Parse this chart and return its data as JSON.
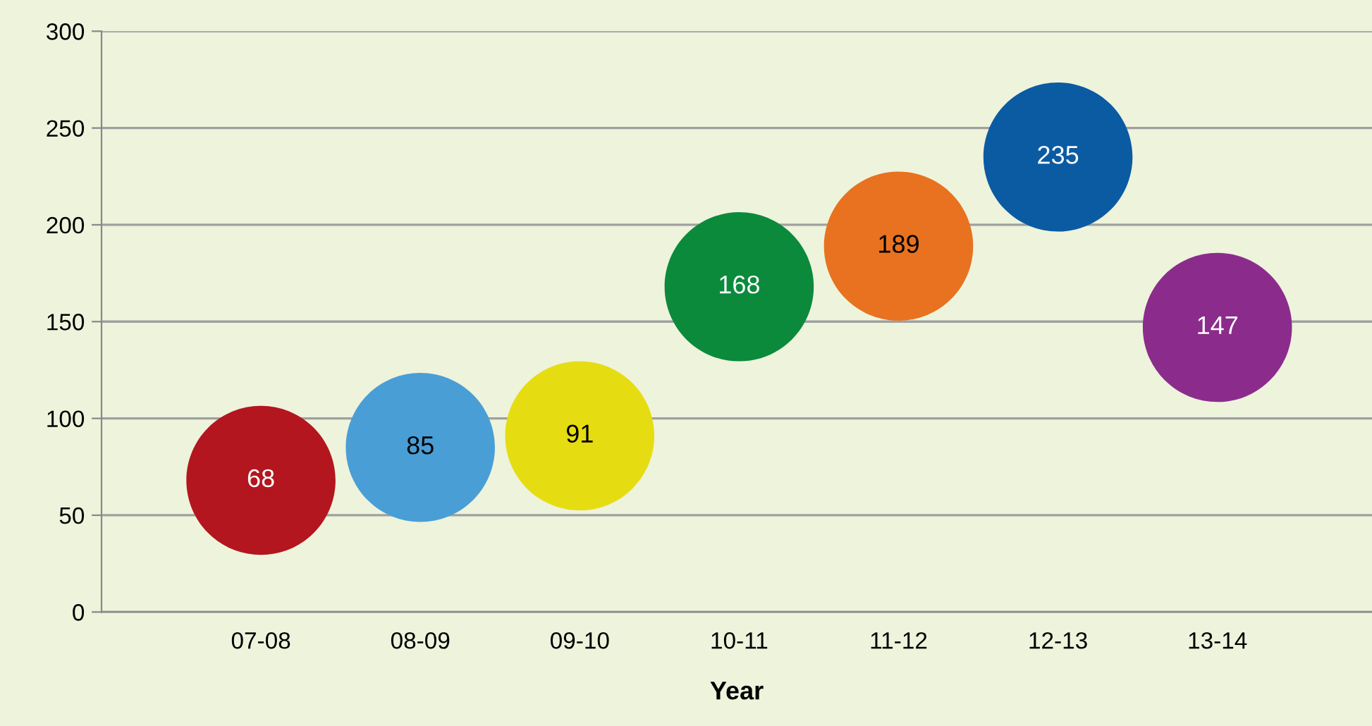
{
  "chart_data": {
    "type": "scatter",
    "xlabel": "Year",
    "categories": [
      "07-08",
      "08-09",
      "09-10",
      "10-11",
      "11-12",
      "12-13",
      "13-14"
    ],
    "values": [
      68,
      85,
      91,
      168,
      189,
      235,
      147
    ],
    "colors": [
      "#b3161e",
      "#4a9ed6",
      "#e6dc12",
      "#0b8a3c",
      "#e8721f",
      "#0b5ba3",
      "#8b2c8c"
    ],
    "ylim": [
      0,
      300
    ],
    "yticks": [
      0,
      50,
      100,
      150,
      200,
      250,
      300
    ],
    "grid": "y",
    "data_labels": true,
    "marker": "circle"
  }
}
